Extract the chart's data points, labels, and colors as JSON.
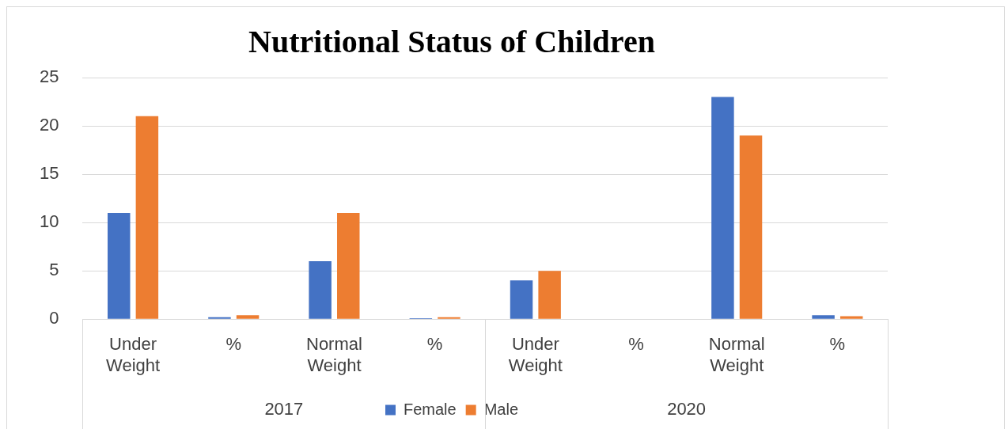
{
  "chart_data": {
    "type": "bar",
    "title": "Nutritional Status of Children",
    "categories": [
      "Under Weight",
      "%",
      "Normal Weight",
      "%",
      "Under Weight",
      "%",
      "Normal Weight",
      "%"
    ],
    "series": [
      {
        "name": "Female",
        "color": "#4472c4",
        "values": [
          11,
          0.2,
          6,
          0.1,
          4,
          0,
          23,
          0.4
        ]
      },
      {
        "name": "Male",
        "color": "#ed7d31",
        "values": [
          21,
          0.4,
          11,
          0.2,
          5,
          null,
          19,
          0.3
        ]
      }
    ],
    "annotations": [
      "2017",
      "2020"
    ],
    "ylim": [
      0,
      25
    ],
    "yticks": [
      0,
      5,
      10,
      15,
      20,
      25
    ],
    "grid": "y",
    "legend": "bottom"
  }
}
